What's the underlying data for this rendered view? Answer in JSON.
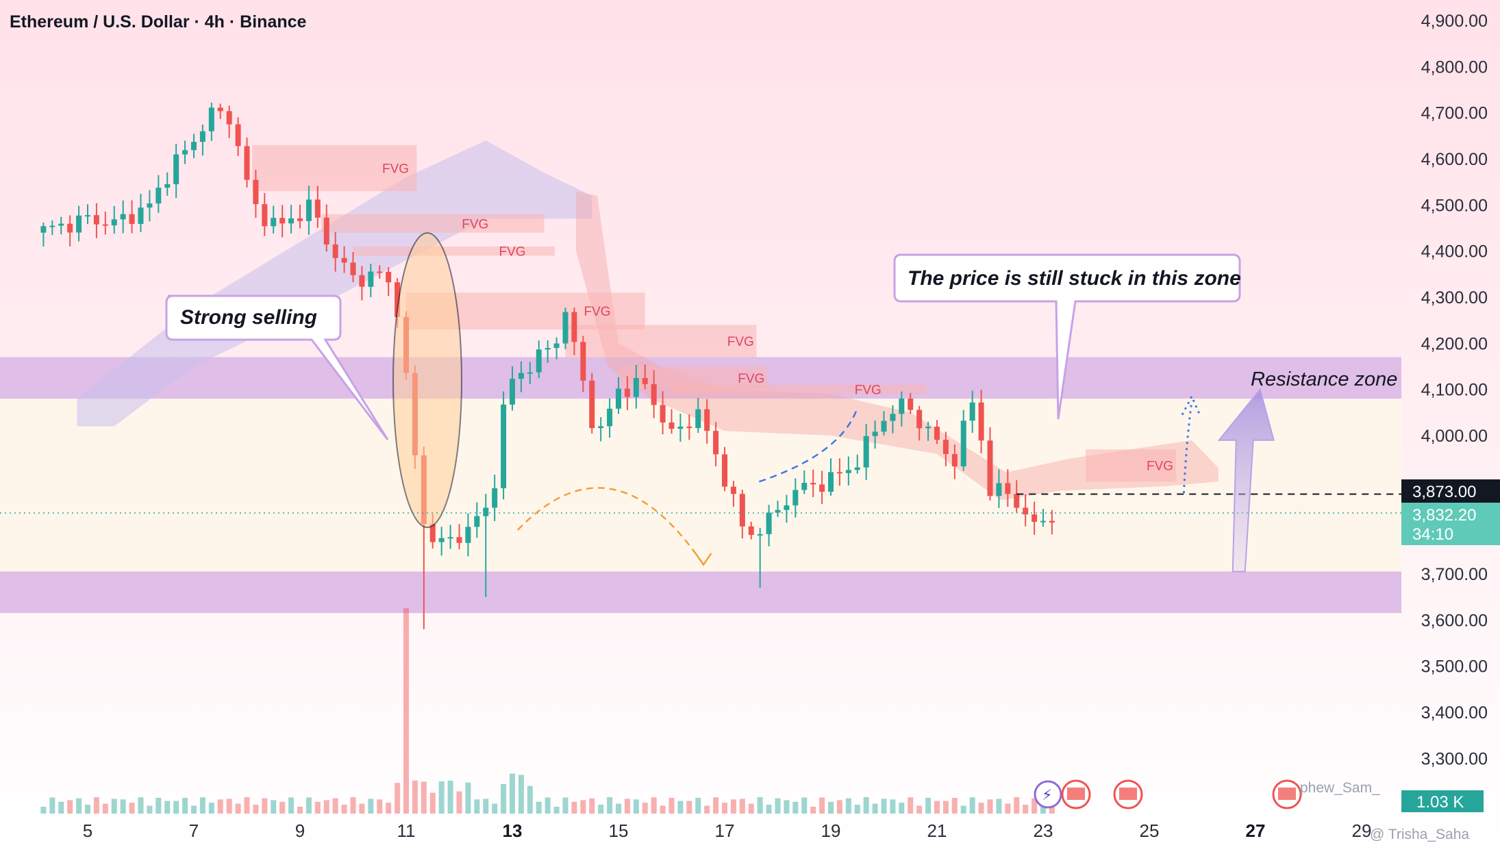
{
  "header": {
    "title": "Ethereum / U.S. Dollar · 4h · Binance"
  },
  "price_badges": {
    "target_price": "3,873.00",
    "current_price": "3,832.20",
    "countdown": "34:10",
    "volume": "1.03 K"
  },
  "annotations": {
    "strong_selling": "Strong selling",
    "stuck_zone": "The price is still stuck in this zone",
    "resistance_zone": "Resistance zone",
    "fvg": "FVG"
  },
  "watermarks": {
    "author1": "phew_Sam_",
    "author2": "@ Trisha_Saha"
  },
  "colors": {
    "bull": "#26a69a",
    "bear": "#ef5350",
    "resistance": "#dcb8e6",
    "support": "#dcb8e6",
    "fvg": "#f9b4b4"
  },
  "chart_data": {
    "type": "candlestick",
    "title": "Ethereum / U.S. Dollar · 4h · Binance",
    "symbol": "ETHUSD",
    "timeframe": "4h",
    "exchange": "Binance",
    "xlabel": "",
    "ylabel": "Price (USD)",
    "ylim": [
      3250,
      4950
    ],
    "y_ticks": [
      "4,900.00",
      "4,800.00",
      "4,700.00",
      "4,600.00",
      "4,500.00",
      "4,400.00",
      "4,300.00",
      "4,200.00",
      "4,100.00",
      "4,000.00",
      "3,700.00",
      "3,600.00",
      "3,500.00",
      "3,400.00",
      "3,300.00"
    ],
    "x_ticks": [
      {
        "label": "5",
        "day": 5
      },
      {
        "label": "7",
        "day": 7
      },
      {
        "label": "9",
        "day": 9
      },
      {
        "label": "11",
        "day": 11
      },
      {
        "label": "13",
        "day": 13,
        "bold": true
      },
      {
        "label": "15",
        "day": 15
      },
      {
        "label": "17",
        "day": 17
      },
      {
        "label": "19",
        "day": 19
      },
      {
        "label": "21",
        "day": 21
      },
      {
        "label": "23",
        "day": 23
      },
      {
        "label": "25",
        "day": 25
      },
      {
        "label": "27",
        "day": 27,
        "bold": true
      },
      {
        "label": "29",
        "day": 29
      }
    ],
    "day_range": [
      4.0,
      29.5
    ],
    "last_price": 3832.2,
    "target_level": 3873.0,
    "resistance_zone": [
      4080,
      4170
    ],
    "support_zone": [
      3615,
      3705
    ],
    "range_zone": [
      3705,
      4080
    ],
    "key_points": [
      {
        "day": 4.0,
        "price": 4440
      },
      {
        "day": 5.0,
        "price": 4470
      },
      {
        "day": 5.5,
        "price": 4460
      },
      {
        "day": 6.2,
        "price": 4500
      },
      {
        "day": 6.6,
        "price": 4590
      },
      {
        "day": 6.9,
        "price": 4620
      },
      {
        "day": 7.3,
        "price": 4700
      },
      {
        "day": 7.7,
        "price": 4690
      },
      {
        "day": 8.1,
        "price": 4500
      },
      {
        "day": 8.6,
        "price": 4450
      },
      {
        "day": 9.2,
        "price": 4500
      },
      {
        "day": 9.6,
        "price": 4400
      },
      {
        "day": 10.0,
        "price": 4340
      },
      {
        "day": 10.5,
        "price": 4350
      },
      {
        "day": 10.8,
        "price": 4310
      },
      {
        "day": 11.0,
        "price": 4120
      },
      {
        "day": 11.3,
        "price": 3820
      },
      {
        "day": 11.6,
        "price": 3760
      },
      {
        "day": 12.1,
        "price": 3790
      },
      {
        "day": 12.6,
        "price": 3850
      },
      {
        "day": 12.9,
        "price": 4110
      },
      {
        "day": 13.3,
        "price": 4150
      },
      {
        "day": 13.8,
        "price": 4200
      },
      {
        "day": 14.0,
        "price": 4270
      },
      {
        "day": 14.3,
        "price": 4130
      },
      {
        "day": 14.6,
        "price": 3990
      },
      {
        "day": 15.0,
        "price": 4100
      },
      {
        "day": 15.5,
        "price": 4110
      },
      {
        "day": 16.0,
        "price": 4000
      },
      {
        "day": 16.5,
        "price": 4050
      },
      {
        "day": 17.0,
        "price": 3910
      },
      {
        "day": 17.4,
        "price": 3780
      },
      {
        "day": 17.8,
        "price": 3810
      },
      {
        "day": 18.3,
        "price": 3880
      },
      {
        "day": 18.9,
        "price": 3900
      },
      {
        "day": 19.4,
        "price": 3930
      },
      {
        "day": 20.0,
        "price": 4040
      },
      {
        "day": 20.4,
        "price": 4070
      },
      {
        "day": 20.9,
        "price": 4000
      },
      {
        "day": 21.3,
        "price": 3940
      },
      {
        "day": 21.7,
        "price": 4085
      },
      {
        "day": 22.0,
        "price": 3880
      },
      {
        "day": 22.4,
        "price": 3875
      },
      {
        "day": 22.8,
        "price": 3800
      },
      {
        "day": 23.2,
        "price": 3832.2
      }
    ],
    "candles_source": "interpolated from key price levels shown on chart",
    "volume_unit": "K",
    "last_volume": 1.03,
    "projection_path": [
      {
        "day": 23.3,
        "price": 3850
      },
      {
        "day": 23.7,
        "price": 3700
      },
      {
        "day": 24.2,
        "price": 3850
      },
      {
        "day": 24.7,
        "price": 3700
      },
      {
        "day": 25.2,
        "price": 3880
      }
    ],
    "fvg_zones": [
      {
        "day_start": 8.1,
        "day_end": 11.2,
        "low": 4530,
        "high": 4630,
        "label": "FVG",
        "label_day": 10.8
      },
      {
        "day_start": 9.4,
        "day_end": 13.6,
        "low": 4440,
        "high": 4480,
        "label": "FVG",
        "label_day": 12.3
      },
      {
        "day_start": 10.0,
        "day_end": 13.8,
        "low": 4390,
        "high": 4410,
        "label": "FVG",
        "label_day": 13.0
      },
      {
        "day_start": 11.0,
        "day_end": 15.5,
        "low": 4230,
        "high": 4310,
        "label": "FVG",
        "label_day": 14.6
      },
      {
        "day_start": 14.0,
        "day_end": 17.6,
        "low": 4170,
        "high": 4240,
        "label": "FVG",
        "label_day": 17.3
      },
      {
        "day_start": 15.0,
        "day_end": 17.8,
        "low": 4100,
        "high": 4150,
        "label": "FVG",
        "label_day": 17.5
      },
      {
        "day_start": 16.0,
        "day_end": 20.8,
        "low": 4090,
        "high": 4110,
        "label": "FVG",
        "label_day": 19.7
      },
      {
        "day_start": 23.8,
        "day_end": 25.5,
        "low": 3900,
        "high": 3970,
        "label": "FVG",
        "label_day": 25.2
      }
    ]
  }
}
